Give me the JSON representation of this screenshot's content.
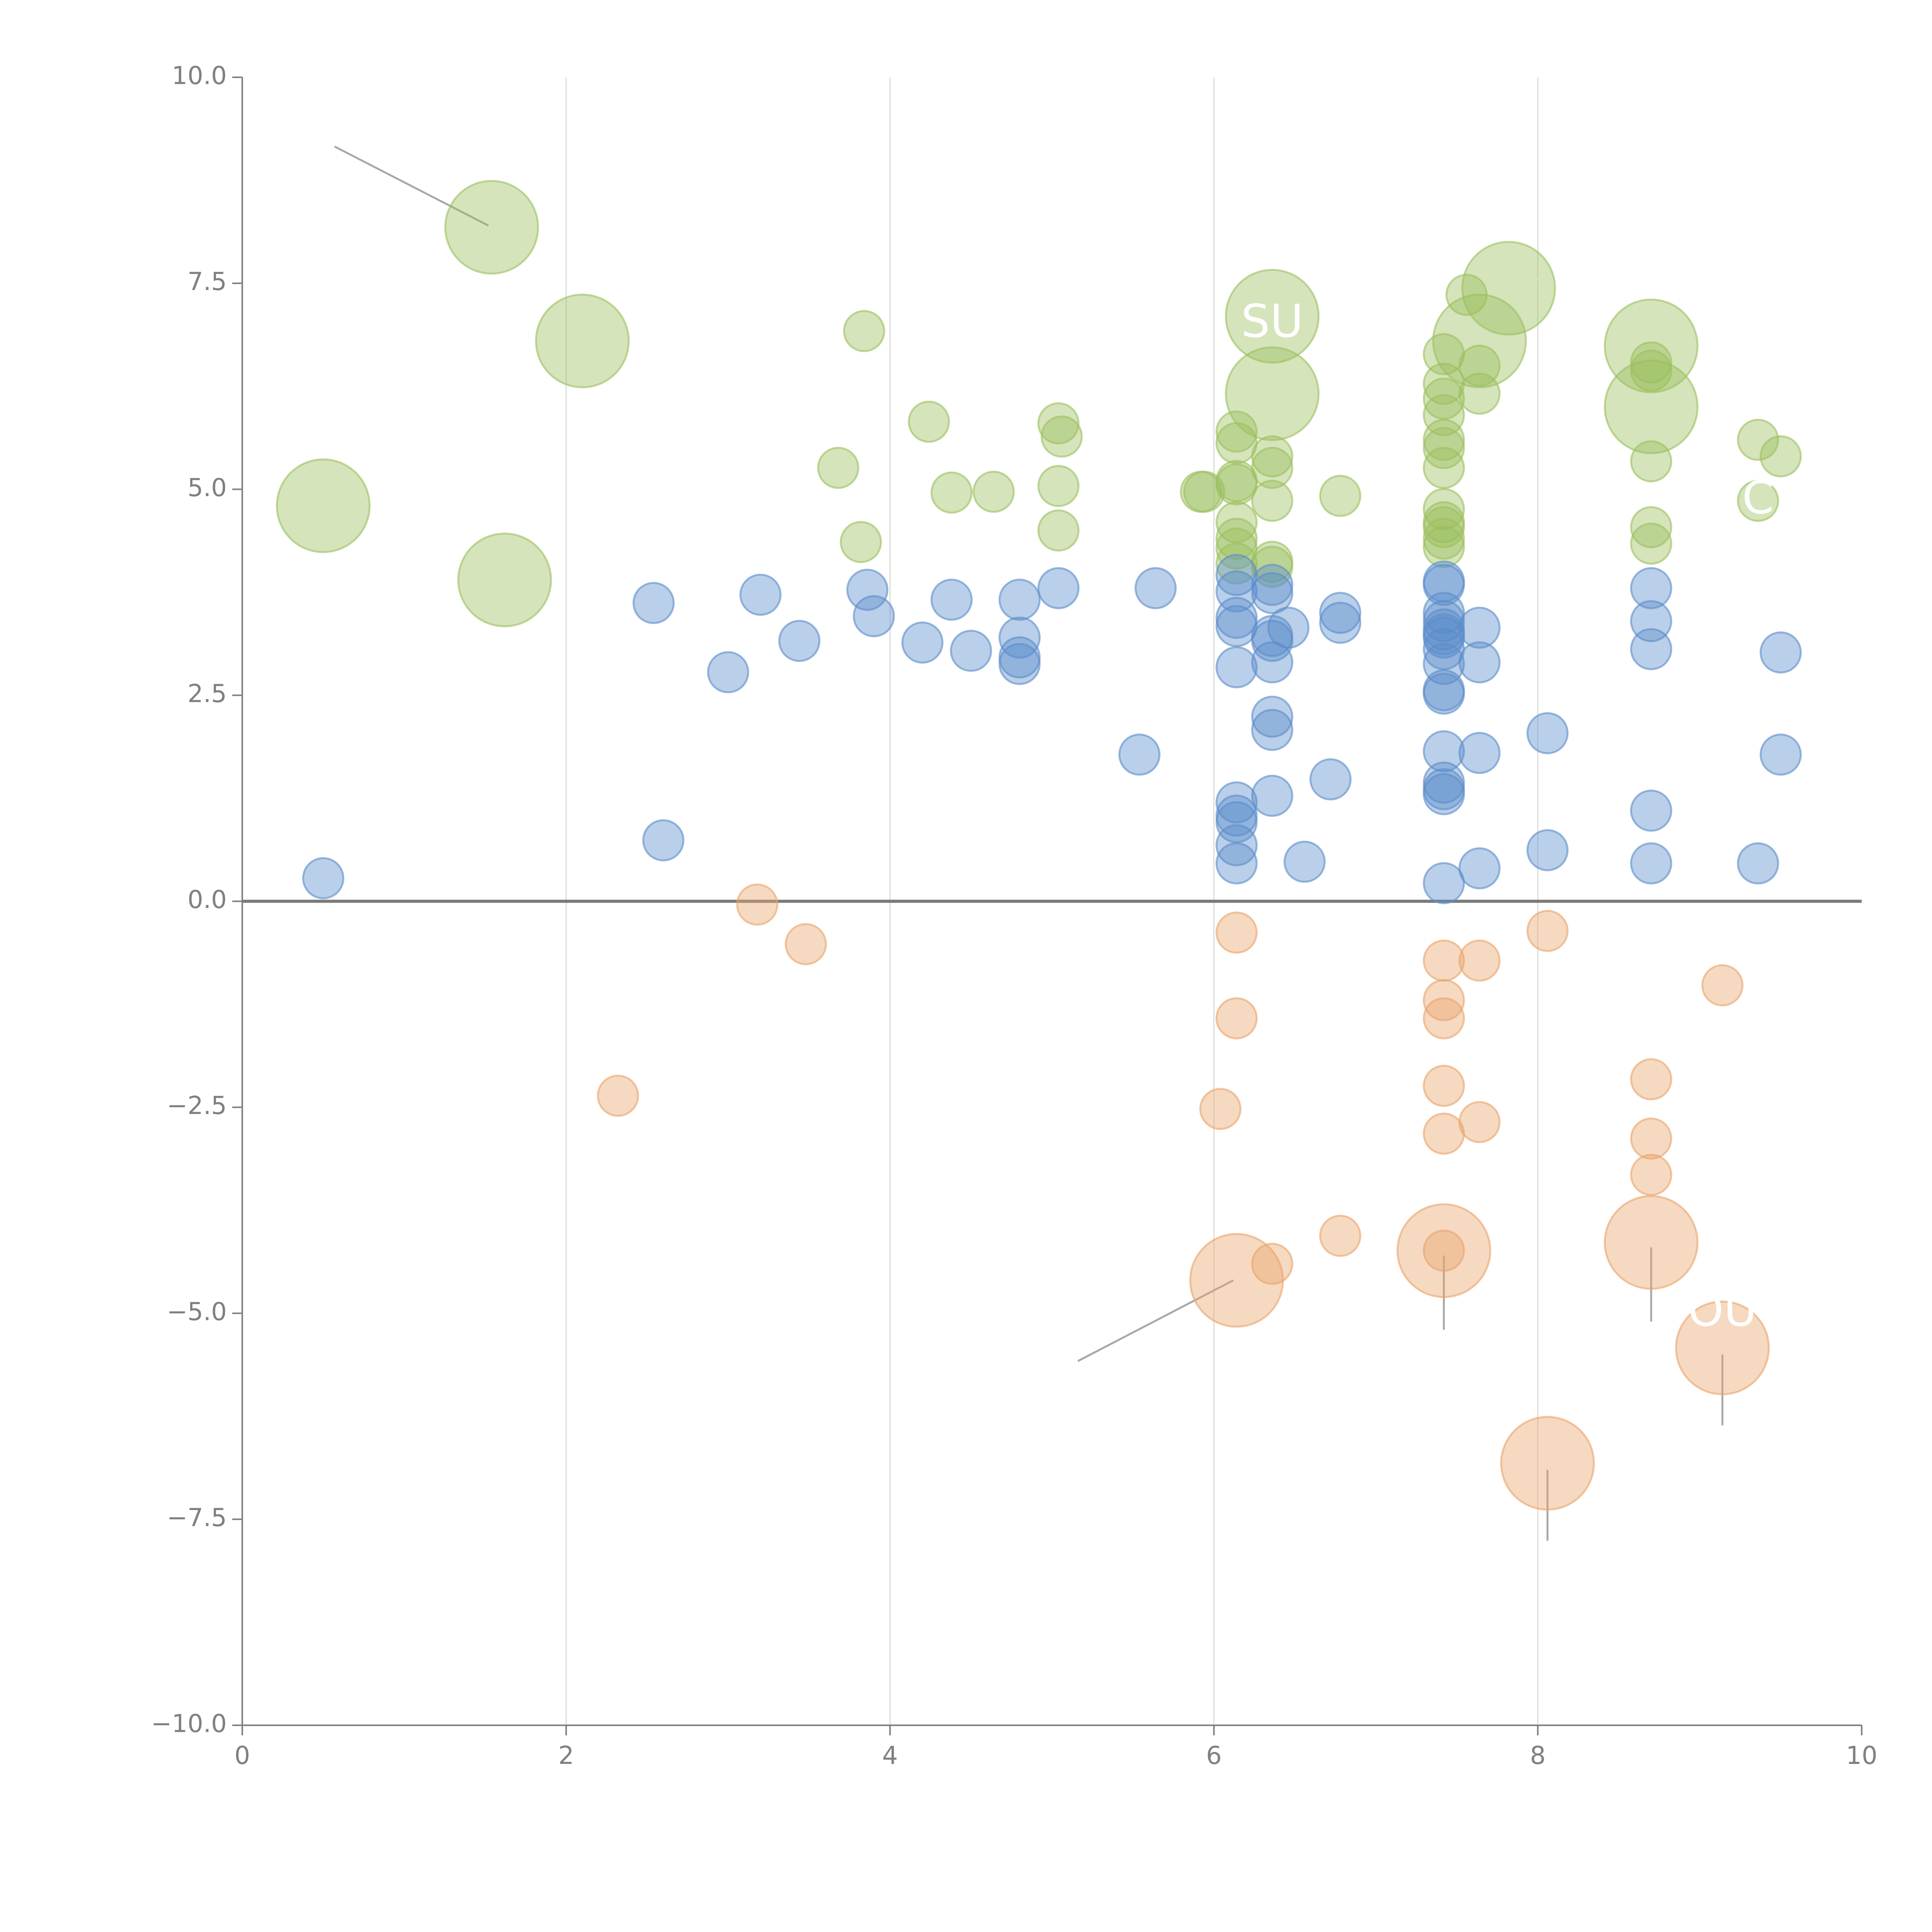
{
  "chart_data": {
    "type": "scatter",
    "title": "",
    "xlabel": "",
    "ylabel": "",
    "xlim": [
      0,
      10
    ],
    "ylim": [
      -10,
      10
    ],
    "grid": "vertical",
    "xticks": [
      {
        "value": 0,
        "label": "0"
      },
      {
        "value": 2,
        "label": "2"
      },
      {
        "value": 4,
        "label": "4"
      },
      {
        "value": 6,
        "label": "6"
      },
      {
        "value": 8,
        "label": "8"
      },
      {
        "value": 10,
        "label": "10"
      }
    ],
    "yticks": [
      {
        "value": 10,
        "label": "10.0"
      },
      {
        "value": 7.5,
        "label": "7.5"
      },
      {
        "value": 5,
        "label": "5.0"
      },
      {
        "value": 2.5,
        "label": "2.5"
      },
      {
        "value": 0,
        "label": "0.0"
      },
      {
        "value": -2.5,
        "label": "−2.5"
      },
      {
        "value": -5,
        "label": "−5.0"
      },
      {
        "value": -7.5,
        "label": "−7.5"
      },
      {
        "value": -10,
        "label": "−10.0"
      }
    ],
    "series": [
      {
        "name": "green",
        "color": "#9bbf5d",
        "points": [
          {
            "x": 1.54,
            "y": 8.18,
            "size": 3
          },
          {
            "x": 2.1,
            "y": 6.8,
            "size": 3
          },
          {
            "x": 0.5,
            "y": 4.8,
            "size": 3
          },
          {
            "x": 1.62,
            "y": 3.9,
            "size": 3
          },
          {
            "x": 3.84,
            "y": 6.92,
            "size": 1
          },
          {
            "x": 4.24,
            "y": 5.82,
            "size": 1
          },
          {
            "x": 3.68,
            "y": 5.26,
            "size": 1
          },
          {
            "x": 3.82,
            "y": 4.36,
            "size": 1
          },
          {
            "x": 4.38,
            "y": 4.96,
            "size": 1
          },
          {
            "x": 4.64,
            "y": 4.97,
            "size": 1
          },
          {
            "x": 5.04,
            "y": 5.8,
            "size": 1
          },
          {
            "x": 5.06,
            "y": 5.64,
            "size": 1
          },
          {
            "x": 5.04,
            "y": 5.04,
            "size": 1
          },
          {
            "x": 5.04,
            "y": 4.5,
            "size": 1
          },
          {
            "x": 5.92,
            "y": 4.97,
            "size": 1
          },
          {
            "x": 5.94,
            "y": 4.97,
            "size": 1
          },
          {
            "x": 6.14,
            "y": 5.7,
            "size": 1
          },
          {
            "x": 6.14,
            "y": 5.56,
            "size": 1
          },
          {
            "x": 6.14,
            "y": 5.1,
            "size": 1
          },
          {
            "x": 6.14,
            "y": 5.06,
            "size": 1
          },
          {
            "x": 6.14,
            "y": 4.6,
            "size": 1
          },
          {
            "x": 6.14,
            "y": 4.4,
            "size": 1
          },
          {
            "x": 6.14,
            "y": 4.28,
            "size": 1
          },
          {
            "x": 6.14,
            "y": 4.1,
            "size": 1
          },
          {
            "x": 6.36,
            "y": 7.1,
            "size": 3
          },
          {
            "x": 6.36,
            "y": 6.16,
            "size": 3
          },
          {
            "x": 6.36,
            "y": 5.4,
            "size": 1
          },
          {
            "x": 6.36,
            "y": 5.26,
            "size": 1
          },
          {
            "x": 6.36,
            "y": 4.86,
            "size": 1
          },
          {
            "x": 6.36,
            "y": 4.12,
            "size": 1
          },
          {
            "x": 6.36,
            "y": 4.06,
            "size": 1
          },
          {
            "x": 6.78,
            "y": 4.92,
            "size": 1
          },
          {
            "x": 7.42,
            "y": 6.64,
            "size": 1
          },
          {
            "x": 7.42,
            "y": 6.28,
            "size": 1
          },
          {
            "x": 7.42,
            "y": 6.1,
            "size": 1
          },
          {
            "x": 7.42,
            "y": 5.9,
            "size": 1
          },
          {
            "x": 7.42,
            "y": 5.6,
            "size": 1
          },
          {
            "x": 7.42,
            "y": 5.5,
            "size": 1
          },
          {
            "x": 7.42,
            "y": 5.26,
            "size": 1
          },
          {
            "x": 7.42,
            "y": 4.76,
            "size": 1
          },
          {
            "x": 7.42,
            "y": 4.6,
            "size": 1
          },
          {
            "x": 7.42,
            "y": 4.54,
            "size": 1
          },
          {
            "x": 7.42,
            "y": 4.4,
            "size": 1
          },
          {
            "x": 7.42,
            "y": 4.3,
            "size": 1
          },
          {
            "x": 7.56,
            "y": 7.36,
            "size": 1
          },
          {
            "x": 7.64,
            "y": 6.8,
            "size": 3
          },
          {
            "x": 7.64,
            "y": 6.5,
            "size": 1
          },
          {
            "x": 7.64,
            "y": 6.16,
            "size": 1
          },
          {
            "x": 7.82,
            "y": 7.44,
            "size": 3
          },
          {
            "x": 8.7,
            "y": 6.74,
            "size": 3
          },
          {
            "x": 8.7,
            "y": 6.54,
            "size": 1
          },
          {
            "x": 8.7,
            "y": 6.44,
            "size": 1
          },
          {
            "x": 8.7,
            "y": 6.0,
            "size": 3
          },
          {
            "x": 8.7,
            "y": 5.34,
            "size": 1
          },
          {
            "x": 8.7,
            "y": 4.54,
            "size": 1
          },
          {
            "x": 8.7,
            "y": 4.34,
            "size": 1
          },
          {
            "x": 9.36,
            "y": 5.6,
            "size": 1
          },
          {
            "x": 9.5,
            "y": 5.4,
            "size": 1
          },
          {
            "x": 9.36,
            "y": 4.86,
            "size": 1
          }
        ]
      },
      {
        "name": "blue",
        "color": "#5b8cca",
        "points": [
          {
            "x": 0.5,
            "y": 0.28,
            "size": 1
          },
          {
            "x": 2.54,
            "y": 3.62,
            "size": 1
          },
          {
            "x": 2.6,
            "y": 0.74,
            "size": 1
          },
          {
            "x": 3.0,
            "y": 2.78,
            "size": 1
          },
          {
            "x": 3.2,
            "y": 3.72,
            "size": 1
          },
          {
            "x": 3.44,
            "y": 3.16,
            "size": 1
          },
          {
            "x": 3.86,
            "y": 3.78,
            "size": 1
          },
          {
            "x": 3.9,
            "y": 3.46,
            "size": 1
          },
          {
            "x": 4.2,
            "y": 3.14,
            "size": 1
          },
          {
            "x": 4.38,
            "y": 3.66,
            "size": 1
          },
          {
            "x": 4.5,
            "y": 3.04,
            "size": 1
          },
          {
            "x": 4.8,
            "y": 3.66,
            "size": 1
          },
          {
            "x": 4.8,
            "y": 3.2,
            "size": 1
          },
          {
            "x": 4.8,
            "y": 2.96,
            "size": 1
          },
          {
            "x": 4.8,
            "y": 2.88,
            "size": 1
          },
          {
            "x": 5.04,
            "y": 3.8,
            "size": 1
          },
          {
            "x": 5.54,
            "y": 1.78,
            "size": 1
          },
          {
            "x": 5.64,
            "y": 3.8,
            "size": 1
          },
          {
            "x": 6.14,
            "y": 3.96,
            "size": 1
          },
          {
            "x": 6.14,
            "y": 3.76,
            "size": 1
          },
          {
            "x": 6.14,
            "y": 3.44,
            "size": 1
          },
          {
            "x": 6.14,
            "y": 3.34,
            "size": 1
          },
          {
            "x": 6.14,
            "y": 2.84,
            "size": 1
          },
          {
            "x": 6.14,
            "y": 1.2,
            "size": 1
          },
          {
            "x": 6.14,
            "y": 1.04,
            "size": 1
          },
          {
            "x": 6.14,
            "y": 0.96,
            "size": 1
          },
          {
            "x": 6.14,
            "y": 0.68,
            "size": 1
          },
          {
            "x": 6.14,
            "y": 0.46,
            "size": 1
          },
          {
            "x": 6.36,
            "y": 3.84,
            "size": 1
          },
          {
            "x": 6.36,
            "y": 3.74,
            "size": 1
          },
          {
            "x": 6.36,
            "y": 3.22,
            "size": 1
          },
          {
            "x": 6.36,
            "y": 3.16,
            "size": 1
          },
          {
            "x": 6.36,
            "y": 2.9,
            "size": 1
          },
          {
            "x": 6.36,
            "y": 2.24,
            "size": 1
          },
          {
            "x": 6.36,
            "y": 2.08,
            "size": 1
          },
          {
            "x": 6.36,
            "y": 1.28,
            "size": 1
          },
          {
            "x": 6.46,
            "y": 3.32,
            "size": 1
          },
          {
            "x": 6.56,
            "y": 0.48,
            "size": 1
          },
          {
            "x": 6.72,
            "y": 1.48,
            "size": 1
          },
          {
            "x": 6.78,
            "y": 3.5,
            "size": 1
          },
          {
            "x": 6.78,
            "y": 3.38,
            "size": 1
          },
          {
            "x": 7.42,
            "y": 3.88,
            "size": 1
          },
          {
            "x": 7.42,
            "y": 3.84,
            "size": 1
          },
          {
            "x": 7.42,
            "y": 3.5,
            "size": 1
          },
          {
            "x": 7.42,
            "y": 3.4,
            "size": 1
          },
          {
            "x": 7.42,
            "y": 3.3,
            "size": 1
          },
          {
            "x": 7.42,
            "y": 3.24,
            "size": 1
          },
          {
            "x": 7.42,
            "y": 3.2,
            "size": 1
          },
          {
            "x": 7.42,
            "y": 3.06,
            "size": 1
          },
          {
            "x": 7.42,
            "y": 2.88,
            "size": 1
          },
          {
            "x": 7.42,
            "y": 2.56,
            "size": 1
          },
          {
            "x": 7.42,
            "y": 2.52,
            "size": 1
          },
          {
            "x": 7.42,
            "y": 1.82,
            "size": 1
          },
          {
            "x": 7.42,
            "y": 1.44,
            "size": 1
          },
          {
            "x": 7.42,
            "y": 1.36,
            "size": 1
          },
          {
            "x": 7.42,
            "y": 1.3,
            "size": 1
          },
          {
            "x": 7.42,
            "y": 0.22,
            "size": 1
          },
          {
            "x": 7.64,
            "y": 3.32,
            "size": 1
          },
          {
            "x": 7.64,
            "y": 2.9,
            "size": 1
          },
          {
            "x": 7.64,
            "y": 1.8,
            "size": 1
          },
          {
            "x": 7.64,
            "y": 0.4,
            "size": 1
          },
          {
            "x": 8.06,
            "y": 2.04,
            "size": 1
          },
          {
            "x": 8.06,
            "y": 0.62,
            "size": 1
          },
          {
            "x": 8.7,
            "y": 3.8,
            "size": 1
          },
          {
            "x": 8.7,
            "y": 3.4,
            "size": 1
          },
          {
            "x": 8.7,
            "y": 3.06,
            "size": 1
          },
          {
            "x": 8.7,
            "y": 1.1,
            "size": 1
          },
          {
            "x": 8.7,
            "y": 0.46,
            "size": 1
          },
          {
            "x": 9.36,
            "y": 0.46,
            "size": 1
          },
          {
            "x": 9.5,
            "y": 3.02,
            "size": 1
          },
          {
            "x": 9.5,
            "y": 1.78,
            "size": 1
          }
        ]
      },
      {
        "name": "orange",
        "color": "#e9a46b",
        "points": [
          {
            "x": 3.18,
            "y": -0.04,
            "size": 1
          },
          {
            "x": 3.48,
            "y": -0.52,
            "size": 1
          },
          {
            "x": 2.32,
            "y": -2.36,
            "size": 1
          },
          {
            "x": 6.04,
            "y": -2.52,
            "size": 1
          },
          {
            "x": 6.14,
            "y": -0.38,
            "size": 1
          },
          {
            "x": 6.14,
            "y": -1.42,
            "size": 1
          },
          {
            "x": 6.14,
            "y": -4.6,
            "size": 3
          },
          {
            "x": 6.36,
            "y": -4.4,
            "size": 1
          },
          {
            "x": 6.78,
            "y": -4.06,
            "size": 1
          },
          {
            "x": 7.42,
            "y": -0.72,
            "size": 1
          },
          {
            "x": 7.42,
            "y": -1.2,
            "size": 1
          },
          {
            "x": 7.42,
            "y": -1.42,
            "size": 1
          },
          {
            "x": 7.42,
            "y": -2.24,
            "size": 1
          },
          {
            "x": 7.42,
            "y": -2.82,
            "size": 1
          },
          {
            "x": 7.42,
            "y": -4.24,
            "size": 3
          },
          {
            "x": 7.42,
            "y": -4.24,
            "size": 1
          },
          {
            "x": 7.64,
            "y": -0.72,
            "size": 1
          },
          {
            "x": 7.64,
            "y": -2.68,
            "size": 1
          },
          {
            "x": 8.06,
            "y": -0.36,
            "size": 1
          },
          {
            "x": 8.06,
            "y": -6.82,
            "size": 3
          },
          {
            "x": 8.7,
            "y": -2.16,
            "size": 1
          },
          {
            "x": 8.7,
            "y": -2.88,
            "size": 1
          },
          {
            "x": 8.7,
            "y": -3.32,
            "size": 1
          },
          {
            "x": 8.7,
            "y": -4.14,
            "size": 3
          },
          {
            "x": 9.14,
            "y": -1.02,
            "size": 1
          },
          {
            "x": 9.14,
            "y": -5.42,
            "size": 3
          }
        ]
      }
    ],
    "annotations": [
      {
        "text": "SU",
        "x": 6.36,
        "y": 7.0
      },
      {
        "text": "C",
        "x": 9.36,
        "y": 4.86
      },
      {
        "text": "OU",
        "x": 9.14,
        "y": -5.0
      }
    ],
    "leader_lines": [
      {
        "x1": 1.52,
        "y1": 8.2,
        "x2": 0.57,
        "y2": 9.16,
        "color": "#a8a8a8"
      },
      {
        "x1": 6.12,
        "y1": -4.6,
        "x2": 5.16,
        "y2": -5.58,
        "color": "#a8a8a8"
      },
      {
        "x1": 7.42,
        "y1": -4.3,
        "x2": 7.42,
        "y2": -5.2,
        "color": "#a8a8a8"
      },
      {
        "x1": 8.7,
        "y1": -4.2,
        "x2": 8.7,
        "y2": -5.1,
        "color": "#a8a8a8"
      },
      {
        "x1": 9.14,
        "y1": -5.5,
        "x2": 9.14,
        "y2": -6.36,
        "color": "#a8a8a8"
      },
      {
        "x1": 8.06,
        "y1": -6.9,
        "x2": 8.06,
        "y2": -7.76,
        "color": "#a8a8a8"
      },
      {
        "x1": 1.66,
        "y1": 3.84,
        "x2": 1.82,
        "y2": 3.58,
        "color": "#ffffff"
      },
      {
        "x1": 6.4,
        "y1": 6.2,
        "x2": 6.58,
        "y2": 6.46,
        "color": "#ffffff"
      },
      {
        "x1": 7.52,
        "y1": 6.6,
        "x2": 7.62,
        "y2": 6.84,
        "color": "#ffffff"
      },
      {
        "x1": 7.86,
        "y1": 7.44,
        "x2": 8.02,
        "y2": 7.56,
        "color": "#ffffff"
      },
      {
        "x1": 8.74,
        "y1": 6.76,
        "x2": 9.0,
        "y2": 6.82,
        "color": "#ffffff"
      },
      {
        "x1": 8.74,
        "y1": 5.94,
        "x2": 8.88,
        "y2": 5.7,
        "color": "#ffffff"
      }
    ]
  }
}
